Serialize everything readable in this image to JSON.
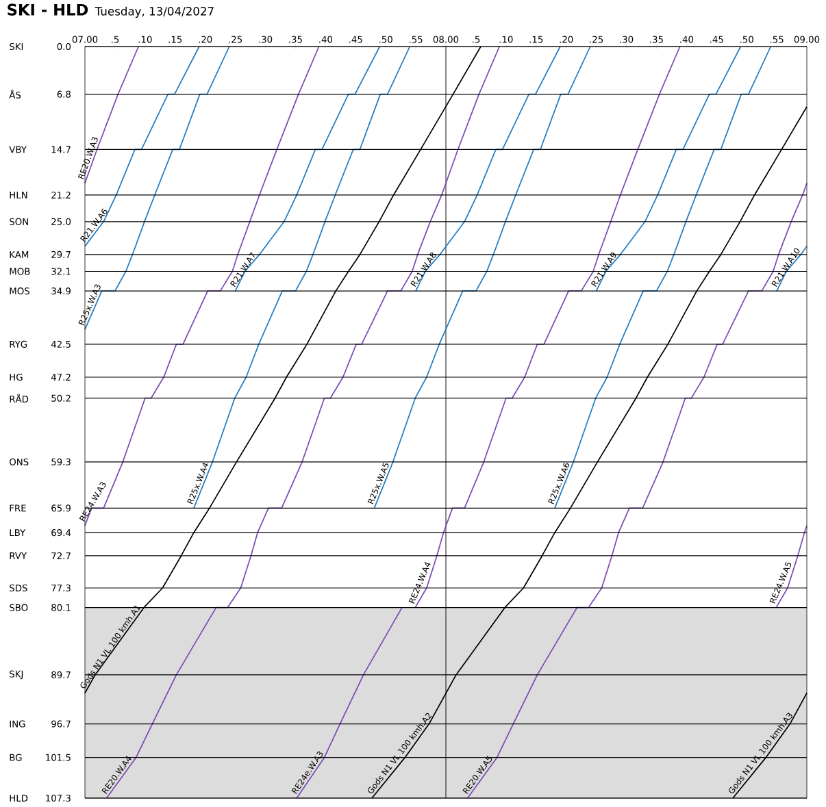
{
  "chart_data": {
    "type": "line",
    "title": "SKI - HLD",
    "subtitle": "Tuesday, 13/04/2027",
    "xlim": [
      "2027-04-13T07:00",
      "2027-04-13T09:00"
    ],
    "ylim": [
      107.3,
      0.0
    ],
    "grid": "y",
    "xticks": [
      {
        "value": "2027-04-13T07:00",
        "label": "07.00"
      },
      {
        "value": "2027-04-13T07:05",
        "label": ".5"
      },
      {
        "value": "2027-04-13T07:10",
        "label": ".10"
      },
      {
        "value": "2027-04-13T07:15",
        "label": ".15"
      },
      {
        "value": "2027-04-13T07:20",
        "label": ".20"
      },
      {
        "value": "2027-04-13T07:25",
        "label": ".25"
      },
      {
        "value": "2027-04-13T07:30",
        "label": ".30"
      },
      {
        "value": "2027-04-13T07:35",
        "label": ".35"
      },
      {
        "value": "2027-04-13T07:40",
        "label": ".40"
      },
      {
        "value": "2027-04-13T07:45",
        "label": ".45"
      },
      {
        "value": "2027-04-13T07:50",
        "label": ".50"
      },
      {
        "value": "2027-04-13T07:55",
        "label": ".55"
      },
      {
        "value": "2027-04-13T08:00",
        "label": "08.00"
      },
      {
        "value": "2027-04-13T08:05",
        "label": ".5"
      },
      {
        "value": "2027-04-13T08:10",
        "label": ".10"
      },
      {
        "value": "2027-04-13T08:15",
        "label": ".15"
      },
      {
        "value": "2027-04-13T08:20",
        "label": ".20"
      },
      {
        "value": "2027-04-13T08:25",
        "label": ".25"
      },
      {
        "value": "2027-04-13T08:30",
        "label": ".30"
      },
      {
        "value": "2027-04-13T08:35",
        "label": ".35"
      },
      {
        "value": "2027-04-13T08:40",
        "label": ".40"
      },
      {
        "value": "2027-04-13T08:45",
        "label": ".45"
      },
      {
        "value": "2027-04-13T08:50",
        "label": ".50"
      },
      {
        "value": "2027-04-13T08:55",
        "label": ".55"
      },
      {
        "value": "2027-04-13T09:00",
        "label": "09.00"
      }
    ],
    "yticks": [
      {
        "value": 0.0,
        "label": "0.0"
      },
      6.8,
      14.7,
      21.2,
      {
        "value": 25.0,
        "label": "25.0"
      },
      29.7,
      32.1,
      34.9,
      42.5,
      47.2,
      50.2,
      59.3,
      65.9,
      69.4,
      72.7,
      77.3,
      80.1,
      89.7,
      96.7,
      101.5,
      107.3
    ],
    "annotations": [
      "SKI",
      "ÅS",
      "VBY",
      "HLN",
      "SON",
      "KAM",
      "MOB",
      "MOS",
      "RYG",
      "HG",
      "RÅD",
      "ONS",
      "FRE",
      "LBY",
      "RVY",
      "SDS",
      "SBO",
      "SKJ",
      "ING",
      "BG",
      "HLD"
    ],
    "bands": [
      {
        "axis": "y",
        "from": 80.1,
        "to": 107.3,
        "color": "#dcdcdc"
      }
    ],
    "ref_lines": [
      {
        "axis": "x",
        "value": "2027-04-13T08:00",
        "color": "#000000"
      }
    ],
    "series": [
      {
        "name": "RE20.W.A3",
        "color": "#7b4bb4",
        "x": [
          "2027-04-13T07:00:00",
          "2027-04-13T07:02:00",
          "2027-04-13T07:05:30",
          "2027-04-13T07:08:54"
        ],
        "values": [
          19.5,
          14.7,
          6.8,
          0.0
        ]
      },
      {
        "name": "Gods N1 VL 100 kmh.A1",
        "color": "#000000",
        "x": [
          "2027-04-13T07:00:00",
          "2027-04-13T07:01:42",
          "2027-04-13T07:09:48",
          "2027-04-13T07:12:54",
          "2027-04-13T07:16:00",
          "2027-04-13T07:18:06",
          "2027-04-13T07:20:42",
          "2027-04-13T07:25:12",
          "2027-04-13T07:31:36",
          "2027-04-13T07:33:30",
          "2027-04-13T07:36:54",
          "2027-04-13T07:41:42",
          "2027-04-13T07:43:48",
          "2027-04-13T07:45:42",
          "2027-04-13T07:48:54",
          "2027-04-13T07:51:18",
          "2027-04-13T07:55:48",
          "2027-04-13T08:01:12",
          "2027-04-13T08:05:48"
        ],
        "values": [
          92.3,
          89.7,
          80.1,
          77.3,
          72.7,
          69.4,
          65.9,
          59.3,
          50.2,
          47.2,
          42.5,
          34.9,
          32.1,
          29.7,
          25.0,
          21.2,
          14.7,
          6.8,
          0.0
        ]
      },
      {
        "name": "RE24.W.A3",
        "color": "#7b4bb4",
        "x": [
          "2027-04-13T07:00:00",
          "2027-04-13T07:01:06",
          "2027-04-13T07:03:06",
          "2027-04-13T07:06:18",
          "2027-04-13T07:10:00",
          "2027-04-13T07:11:00",
          "2027-04-13T07:13:06",
          "2027-04-13T07:15:12",
          "2027-04-13T07:16:18",
          "2027-04-13T07:20:24",
          "2027-04-13T07:22:30",
          "2027-04-13T07:24:30",
          "2027-04-13T07:25:24",
          "2027-04-13T07:27:24",
          "2027-04-13T07:29:00",
          "2027-04-13T07:31:54",
          "2027-04-13T07:35:30",
          "2027-04-13T07:38:54"
        ],
        "values": [
          68.4,
          65.9,
          65.9,
          59.3,
          50.2,
          50.2,
          47.2,
          42.5,
          42.5,
          34.9,
          34.9,
          32.1,
          29.7,
          25.0,
          21.2,
          14.7,
          6.8,
          0.0
        ]
      },
      {
        "name": "R21.W.A6",
        "color": "#1f7cc4",
        "x": [
          "2027-04-13T07:00:00",
          "2027-04-13T07:03:06",
          "2027-04-13T07:05:12",
          "2027-04-13T07:08:18",
          "2027-04-13T07:09:24",
          "2027-04-13T07:13:48",
          "2027-04-13T07:14:54",
          "2027-04-13T07:19:00"
        ],
        "values": [
          28.5,
          25.0,
          21.2,
          14.7,
          14.7,
          6.8,
          6.8,
          0.0
        ]
      },
      {
        "name": "R25x.W.A3",
        "color": "#1f7cc4",
        "x": [
          "2027-04-13T07:00:00",
          "2027-04-13T07:02:48",
          "2027-04-13T07:05:00",
          "2027-04-13T07:06:48",
          "2027-04-13T07:07:54",
          "2027-04-13T07:09:54",
          "2027-04-13T07:11:36",
          "2027-04-13T07:14:36",
          "2027-04-13T07:15:42",
          "2027-04-13T07:19:06",
          "2027-04-13T07:20:18",
          "2027-04-13T07:24:00"
        ],
        "values": [
          40.4,
          34.9,
          34.9,
          32.1,
          29.7,
          25.0,
          21.2,
          14.7,
          14.7,
          6.8,
          6.8,
          0.0
        ]
      },
      {
        "name": "RE20.W.A4",
        "color": "#7b4bb4",
        "x": [
          "2027-04-13T07:03:36",
          "2027-04-13T07:08:30",
          "2027-04-13T07:11:12",
          "2027-04-13T07:15:12",
          "2027-04-13T07:21:48",
          "2027-04-13T07:23:42",
          "2027-04-13T07:25:54",
          "2027-04-13T07:27:36",
          "2027-04-13T07:28:42",
          "2027-04-13T07:30:30",
          "2027-04-13T07:32:42",
          "2027-04-13T07:36:06",
          "2027-04-13T07:39:48",
          "2027-04-13T07:40:48",
          "2027-04-13T07:42:54",
          "2027-04-13T07:45:06",
          "2027-04-13T07:46:00",
          "2027-04-13T07:50:18",
          "2027-04-13T07:52:30",
          "2027-04-13T07:54:24",
          "2027-04-13T07:55:18",
          "2027-04-13T07:57:24",
          "2027-04-13T07:59:18",
          "2027-04-13T08:02:00",
          "2027-04-13T08:05:30",
          "2027-04-13T08:08:54"
        ],
        "values": [
          107.3,
          101.5,
          96.7,
          89.7,
          80.1,
          80.1,
          77.3,
          72.7,
          69.4,
          65.9,
          65.9,
          59.3,
          50.2,
          50.2,
          47.2,
          42.5,
          42.5,
          34.9,
          34.9,
          32.1,
          29.7,
          25.0,
          21.2,
          14.7,
          6.8,
          0.0
        ]
      },
      {
        "name": "R25x.W.A4",
        "color": "#1f7cc4",
        "x": [
          "2027-04-13T07:18:06",
          "2027-04-13T07:21:12",
          "2027-04-13T07:24:54",
          "2027-04-13T07:26:48",
          "2027-04-13T07:28:54",
          "2027-04-13T07:32:48",
          "2027-04-13T07:35:00",
          "2027-04-13T07:36:48",
          "2027-04-13T07:37:54",
          "2027-04-13T07:39:54",
          "2027-04-13T07:41:36",
          "2027-04-13T07:44:36",
          "2027-04-13T07:45:42",
          "2027-04-13T07:49:06",
          "2027-04-13T07:50:18",
          "2027-04-13T07:54:00"
        ],
        "values": [
          65.9,
          59.3,
          50.2,
          47.2,
          42.5,
          34.9,
          34.9,
          32.1,
          29.7,
          25.0,
          21.2,
          14.7,
          14.7,
          6.8,
          6.8,
          0.0
        ]
      },
      {
        "name": "R21.W.A7",
        "color": "#1f7cc4",
        "x": [
          "2027-04-13T07:25:00",
          "2027-04-13T07:26:36",
          "2027-04-13T07:29:00",
          "2027-04-13T07:33:06",
          "2027-04-13T07:35:12",
          "2027-04-13T07:38:18",
          "2027-04-13T07:39:24",
          "2027-04-13T07:43:48",
          "2027-04-13T07:44:54",
          "2027-04-13T07:49:00"
        ],
        "values": [
          34.9,
          32.1,
          29.7,
          25.0,
          21.2,
          14.7,
          14.7,
          6.8,
          6.8,
          0.0
        ]
      },
      {
        "name": "RE24e.W.A3",
        "color": "#7b4bb4",
        "x": [
          "2027-04-13T07:35:12",
          "2027-04-13T07:39:48",
          "2027-04-13T07:42:24",
          "2027-04-13T07:46:18",
          "2027-04-13T07:52:42"
        ],
        "values": [
          107.3,
          101.5,
          96.7,
          89.7,
          80.1
        ]
      },
      {
        "name": "Gods N1 VL 100 kmh.A2",
        "color": "#000000",
        "x": [
          "2027-04-13T07:47:42",
          "2027-04-13T07:53:12",
          "2027-04-13T07:57:12",
          "2027-04-13T08:01:42",
          "2027-04-13T08:09:48",
          "2027-04-13T08:12:54",
          "2027-04-13T08:16:00",
          "2027-04-13T08:18:06",
          "2027-04-13T08:20:42",
          "2027-04-13T08:25:12",
          "2027-04-13T08:31:36",
          "2027-04-13T08:33:30",
          "2027-04-13T08:36:54",
          "2027-04-13T08:41:42",
          "2027-04-13T08:43:48",
          "2027-04-13T08:45:42",
          "2027-04-13T08:48:54",
          "2027-04-13T08:51:18",
          "2027-04-13T08:55:48",
          "2027-04-13T09:00:00"
        ],
        "values": [
          107.3,
          101.5,
          96.7,
          89.7,
          80.1,
          77.3,
          72.7,
          69.4,
          65.9,
          59.3,
          50.2,
          47.2,
          42.5,
          34.9,
          32.1,
          29.7,
          25.0,
          21.2,
          14.7,
          8.6
        ]
      },
      {
        "name": "R25x.W.A5",
        "color": "#1f7cc4",
        "x": [
          "2027-04-13T07:48:06",
          "2027-04-13T07:51:12",
          "2027-04-13T07:54:54",
          "2027-04-13T07:56:48",
          "2027-04-13T07:58:54",
          "2027-04-13T08:02:48",
          "2027-04-13T08:05:00",
          "2027-04-13T08:06:48",
          "2027-04-13T08:07:54",
          "2027-04-13T08:09:54",
          "2027-04-13T08:11:36",
          "2027-04-13T08:14:36",
          "2027-04-13T08:15:42",
          "2027-04-13T08:19:06",
          "2027-04-13T08:20:18",
          "2027-04-13T08:24:00"
        ],
        "values": [
          65.9,
          59.3,
          50.2,
          47.2,
          42.5,
          34.9,
          34.9,
          32.1,
          29.7,
          25.0,
          21.2,
          14.7,
          14.7,
          6.8,
          6.8,
          0.0
        ]
      },
      {
        "name": "RE24.W.A4",
        "color": "#7b4bb4",
        "x": [
          "2027-04-13T07:54:54",
          "2027-04-13T07:56:48",
          "2027-04-13T07:58:30",
          "2027-04-13T07:59:36",
          "2027-04-13T08:01:06",
          "2027-04-13T08:03:06",
          "2027-04-13T08:06:18",
          "2027-04-13T08:10:00",
          "2027-04-13T08:11:00",
          "2027-04-13T08:13:06",
          "2027-04-13T08:15:12",
          "2027-04-13T08:16:18",
          "2027-04-13T08:20:24",
          "2027-04-13T08:22:30",
          "2027-04-13T08:24:30",
          "2027-04-13T08:25:24",
          "2027-04-13T08:27:24",
          "2027-04-13T08:29:00",
          "2027-04-13T08:31:54",
          "2027-04-13T08:35:30",
          "2027-04-13T08:38:54"
        ],
        "values": [
          80.1,
          77.3,
          72.7,
          69.4,
          65.9,
          65.9,
          59.3,
          50.2,
          50.2,
          47.2,
          42.5,
          42.5,
          34.9,
          34.9,
          32.1,
          29.7,
          25.0,
          21.2,
          14.7,
          6.8,
          0.0
        ]
      },
      {
        "name": "R21.W.A8",
        "color": "#1f7cc4",
        "x": [
          "2027-04-13T07:55:00",
          "2027-04-13T07:56:36",
          "2027-04-13T07:59:00",
          "2027-04-13T08:03:06",
          "2027-04-13T08:05:12",
          "2027-04-13T08:08:18",
          "2027-04-13T08:09:24",
          "2027-04-13T08:13:48",
          "2027-04-13T08:14:54",
          "2027-04-13T08:19:00"
        ],
        "values": [
          34.9,
          32.1,
          29.7,
          25.0,
          21.2,
          14.7,
          14.7,
          6.8,
          6.8,
          0.0
        ]
      },
      {
        "name": "RE20.W.A5",
        "color": "#7b4bb4",
        "x": [
          "2027-04-13T08:03:36",
          "2027-04-13T08:08:30",
          "2027-04-13T08:11:12",
          "2027-04-13T08:15:12",
          "2027-04-13T08:21:48",
          "2027-04-13T08:23:42",
          "2027-04-13T08:25:54",
          "2027-04-13T08:27:36",
          "2027-04-13T08:28:42",
          "2027-04-13T08:30:30",
          "2027-04-13T08:32:42",
          "2027-04-13T08:36:06",
          "2027-04-13T08:39:48",
          "2027-04-13T08:40:48",
          "2027-04-13T08:42:54",
          "2027-04-13T08:45:06",
          "2027-04-13T08:46:00",
          "2027-04-13T08:50:18",
          "2027-04-13T08:52:30",
          "2027-04-13T08:54:24",
          "2027-04-13T08:55:18",
          "2027-04-13T08:57:24",
          "2027-04-13T08:59:18",
          "2027-04-13T09:00:00"
        ],
        "values": [
          107.3,
          101.5,
          96.7,
          89.7,
          80.1,
          80.1,
          77.3,
          72.7,
          69.4,
          65.9,
          65.9,
          59.3,
          50.2,
          50.2,
          47.2,
          42.5,
          42.5,
          34.9,
          34.9,
          32.1,
          29.7,
          25.0,
          21.2,
          19.5
        ]
      },
      {
        "name": "R25x.W.A6",
        "color": "#1f7cc4",
        "x": [
          "2027-04-13T08:18:06",
          "2027-04-13T08:21:12",
          "2027-04-13T08:24:54",
          "2027-04-13T08:26:48",
          "2027-04-13T08:28:54",
          "2027-04-13T08:32:48",
          "2027-04-13T08:35:00",
          "2027-04-13T08:36:48",
          "2027-04-13T08:37:54",
          "2027-04-13T08:39:54",
          "2027-04-13T08:41:36",
          "2027-04-13T08:44:36",
          "2027-04-13T08:45:42",
          "2027-04-13T08:49:06",
          "2027-04-13T08:50:18",
          "2027-04-13T08:54:00"
        ],
        "values": [
          65.9,
          59.3,
          50.2,
          47.2,
          42.5,
          34.9,
          34.9,
          32.1,
          29.7,
          25.0,
          21.2,
          14.7,
          14.7,
          6.8,
          6.8,
          0.0
        ]
      },
      {
        "name": "R21.W.A9",
        "color": "#1f7cc4",
        "x": [
          "2027-04-13T08:25:00",
          "2027-04-13T08:26:36",
          "2027-04-13T08:29:00",
          "2027-04-13T08:33:06",
          "2027-04-13T08:35:12",
          "2027-04-13T08:38:18",
          "2027-04-13T08:39:24",
          "2027-04-13T08:43:48",
          "2027-04-13T08:44:54",
          "2027-04-13T08:49:00"
        ],
        "values": [
          34.9,
          32.1,
          29.7,
          25.0,
          21.2,
          14.7,
          14.7,
          6.8,
          6.8,
          0.0
        ]
      },
      {
        "name": "Gods N1 VL 100 kmh.A3",
        "color": "#000000",
        "x": [
          "2027-04-13T08:47:42",
          "2027-04-13T08:53:12",
          "2027-04-13T08:57:12",
          "2027-04-13T09:00:00"
        ],
        "values": [
          107.3,
          101.5,
          96.7,
          92.3
        ]
      },
      {
        "name": "RE24.W.A5",
        "color": "#7b4bb4",
        "x": [
          "2027-04-13T08:54:54",
          "2027-04-13T08:56:48",
          "2027-04-13T08:58:30",
          "2027-04-13T08:59:36",
          "2027-04-13T09:00:00"
        ],
        "values": [
          80.1,
          77.3,
          72.7,
          69.4,
          68.4
        ]
      },
      {
        "name": "R21.W.A10",
        "color": "#1f7cc4",
        "x": [
          "2027-04-13T08:55:00",
          "2027-04-13T08:56:36",
          "2027-04-13T08:59:00",
          "2027-04-13T09:00:00"
        ],
        "values": [
          34.9,
          32.1,
          29.7,
          28.5
        ]
      }
    ]
  }
}
